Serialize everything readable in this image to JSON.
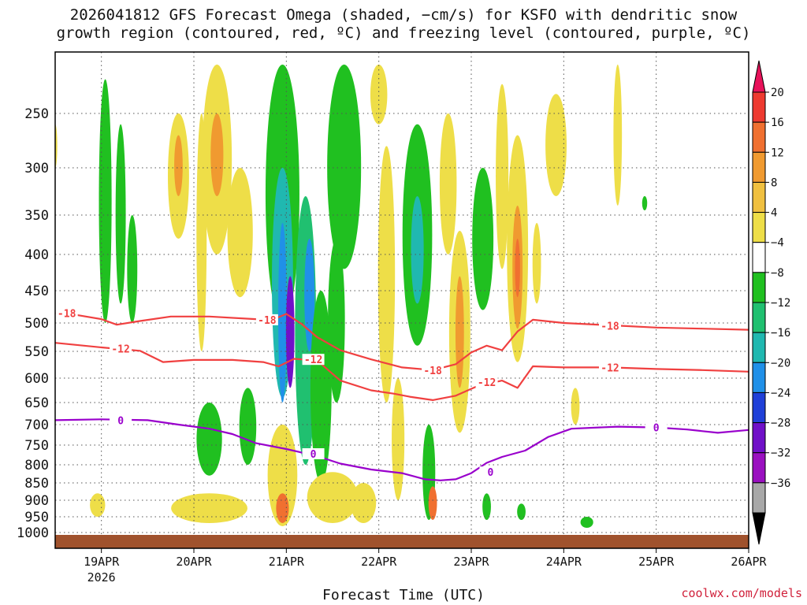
{
  "title_line1": "2026041812 GFS Forecast Omega (shaded, −cm/s) for KSFO with dendritic snow",
  "title_line2": "growth region (contoured, red, ºC) and freezing level (contoured, purple, ºC)",
  "credit": "coolwx.com/models",
  "colors": {
    "isotherm": "#f04040",
    "freezing": "#9900cc",
    "ground": "#a0522d"
  },
  "chart_data": {
    "type": "heatmap",
    "title": "2026041812 GFS Forecast Omega (shaded, −cm/s) for KSFO with dendritic snow growth region (contoured, red, ºC) and freezing level (contoured, purple, ºC)",
    "xlabel": "Forecast Time (UTC)",
    "ylabel": "",
    "x_range_hours": [
      -12,
      168
    ],
    "x_ticks": [
      {
        "label": "19APR",
        "sub": "2026",
        "hour": 0
      },
      {
        "label": "20APR",
        "sub": "",
        "hour": 24
      },
      {
        "label": "21APR",
        "sub": "",
        "hour": 48
      },
      {
        "label": "22APR",
        "sub": "",
        "hour": 72
      },
      {
        "label": "23APR",
        "sub": "",
        "hour": 96
      },
      {
        "label": "24APR",
        "sub": "",
        "hour": 120
      },
      {
        "label": "25APR",
        "sub": "",
        "hour": 144
      },
      {
        "label": "26APR",
        "sub": "",
        "hour": 168
      }
    ],
    "y_ticks_hpa": [
      250,
      300,
      350,
      400,
      450,
      500,
      550,
      600,
      650,
      700,
      750,
      800,
      850,
      900,
      950,
      1000
    ],
    "y_range_hpa": [
      1010,
      200
    ],
    "grid": true,
    "colorbar": {
      "labels": [
        "20",
        "16",
        "12",
        "8",
        "4",
        "−4",
        "−8",
        "−12",
        "−16",
        "−20",
        "−24",
        "−28",
        "−32",
        "−36"
      ],
      "colors": [
        "#e8125a",
        "#ee3a30",
        "#f07030",
        "#f09a30",
        "#f0c040",
        "#eede48",
        "#ffffff",
        "#20c020",
        "#20c070",
        "#20b8b0",
        "#2090e8",
        "#2040d8",
        "#7010c8",
        "#9a10c0",
        "#a8a8a8",
        "#000000"
      ]
    },
    "series": [
      {
        "name": "-18",
        "color": "#f04040",
        "points": [
          [
            -12,
            485
          ],
          [
            -6,
            488
          ],
          [
            0,
            494
          ],
          [
            4,
            503
          ],
          [
            10,
            497
          ],
          [
            18,
            490
          ],
          [
            28,
            490
          ],
          [
            40,
            494
          ],
          [
            44,
            496
          ],
          [
            48,
            486
          ],
          [
            52,
            502
          ],
          [
            56,
            525
          ],
          [
            62,
            548
          ],
          [
            70,
            565
          ],
          [
            78,
            580
          ],
          [
            86,
            585
          ],
          [
            92,
            574
          ],
          [
            96,
            552
          ],
          [
            100,
            540
          ],
          [
            104,
            548
          ],
          [
            108,
            515
          ],
          [
            112,
            495
          ],
          [
            120,
            500
          ],
          [
            132,
            504
          ],
          [
            144,
            508
          ],
          [
            156,
            510
          ],
          [
            168,
            512
          ]
        ]
      },
      {
        "name": "-12",
        "color": "#f04040",
        "points": [
          [
            -12,
            535
          ],
          [
            0,
            543
          ],
          [
            10,
            549
          ],
          [
            16,
            570
          ],
          [
            24,
            566
          ],
          [
            34,
            566
          ],
          [
            42,
            570
          ],
          [
            46,
            578
          ],
          [
            50,
            564
          ],
          [
            56,
            567
          ],
          [
            62,
            605
          ],
          [
            70,
            625
          ],
          [
            76,
            632
          ],
          [
            80,
            638
          ],
          [
            86,
            645
          ],
          [
            92,
            636
          ],
          [
            98,
            615
          ],
          [
            104,
            605
          ],
          [
            108,
            620
          ],
          [
            112,
            578
          ],
          [
            120,
            580
          ],
          [
            132,
            580
          ],
          [
            144,
            583
          ],
          [
            156,
            585
          ],
          [
            168,
            588
          ]
        ]
      },
      {
        "name": "0",
        "color": "#9900cc",
        "points": [
          [
            -12,
            690
          ],
          [
            0,
            688
          ],
          [
            12,
            690
          ],
          [
            20,
            700
          ],
          [
            28,
            710
          ],
          [
            34,
            723
          ],
          [
            40,
            745
          ],
          [
            48,
            760
          ],
          [
            56,
            778
          ],
          [
            62,
            797
          ],
          [
            70,
            813
          ],
          [
            78,
            823
          ],
          [
            84,
            840
          ],
          [
            88,
            843
          ],
          [
            92,
            840
          ],
          [
            96,
            823
          ],
          [
            100,
            795
          ],
          [
            104,
            780
          ],
          [
            110,
            764
          ],
          [
            116,
            730
          ],
          [
            122,
            710
          ],
          [
            134,
            705
          ],
          [
            144,
            707
          ],
          [
            152,
            712
          ],
          [
            160,
            720
          ],
          [
            168,
            713
          ]
        ]
      }
    ],
    "contour_labels": [
      {
        "text": "-18",
        "hour": -9,
        "hpa": 485,
        "series": "-18"
      },
      {
        "text": "-18",
        "hour": 43,
        "hpa": 495,
        "series": "-18"
      },
      {
        "text": "-18",
        "hour": 86,
        "hpa": 585,
        "series": "-18"
      },
      {
        "text": "-18",
        "hour": 132,
        "hpa": 505,
        "series": "-18"
      },
      {
        "text": "-12",
        "hour": 5,
        "hpa": 545,
        "series": "-12"
      },
      {
        "text": "-12",
        "hour": 55,
        "hpa": 565,
        "series": "-12"
      },
      {
        "text": "-12",
        "hour": 100,
        "hpa": 608,
        "series": "-12"
      },
      {
        "text": "-12",
        "hour": 132,
        "hpa": 580,
        "series": "-12"
      },
      {
        "text": "0",
        "hour": 5,
        "hpa": 690,
        "series": "0"
      },
      {
        "text": "0",
        "hour": 55,
        "hpa": 772,
        "series": "0"
      },
      {
        "text": "0",
        "hour": 101,
        "hpa": 820,
        "series": "0"
      },
      {
        "text": "0",
        "hour": 144,
        "hpa": 707,
        "series": "0"
      }
    ],
    "omega_regions": [
      {
        "hour": 1,
        "hpa_top": 215,
        "hpa_bot": 500,
        "w": 1.5,
        "value": -6
      },
      {
        "hour": 5,
        "hpa_top": 260,
        "hpa_bot": 470,
        "w": 1.2,
        "value": -6
      },
      {
        "hour": 8,
        "hpa_top": 350,
        "hpa_bot": 500,
        "w": 1.2,
        "value": -5
      },
      {
        "hour": -12,
        "hpa_top": 260,
        "hpa_bot": 300,
        "w": 0.5,
        "value": 5
      },
      {
        "hour": -1,
        "hpa_top": 880,
        "hpa_bot": 950,
        "w": 1.8,
        "value": 5
      },
      {
        "hour": 20,
        "hpa_top": 250,
        "hpa_bot": 380,
        "w": 2.5,
        "value": 6
      },
      {
        "hour": 20,
        "hpa_top": 270,
        "hpa_bot": 330,
        "w": 1.0,
        "value": 10
      },
      {
        "hour": 26,
        "hpa_top": 250,
        "hpa_bot": 550,
        "w": 1.2,
        "value": 6
      },
      {
        "hour": 30,
        "hpa_top": 200,
        "hpa_bot": 400,
        "w": 3.5,
        "value": 6
      },
      {
        "hour": 30,
        "hpa_top": 250,
        "hpa_bot": 330,
        "w": 1.5,
        "value": 10
      },
      {
        "hour": 36,
        "hpa_top": 300,
        "hpa_bot": 460,
        "w": 3.0,
        "value": 6
      },
      {
        "hour": 28,
        "hpa_top": 650,
        "hpa_bot": 830,
        "w": 3.0,
        "value": -6
      },
      {
        "hour": 38,
        "hpa_top": 620,
        "hpa_bot": 800,
        "w": 2.0,
        "value": -6
      },
      {
        "hour": 28,
        "hpa_top": 880,
        "hpa_bot": 970,
        "w": 9.0,
        "value": 6
      },
      {
        "hour": 24,
        "hpa_top": 900,
        "hpa_bot": 960,
        "w": 3.0,
        "value": 6
      },
      {
        "hour": 47,
        "hpa_top": 200,
        "hpa_bot": 500,
        "w": 4.0,
        "value": -7
      },
      {
        "hour": 47,
        "hpa_top": 300,
        "hpa_bot": 640,
        "w": 2.5,
        "value": -12
      },
      {
        "hour": 47,
        "hpa_top": 360,
        "hpa_bot": 650,
        "w": 1.0,
        "value": -18
      },
      {
        "hour": 49,
        "hpa_top": 430,
        "hpa_bot": 620,
        "w": 1.0,
        "value": -25
      },
      {
        "hour": 53,
        "hpa_top": 330,
        "hpa_bot": 800,
        "w": 2.5,
        "value": -8
      },
      {
        "hour": 54,
        "hpa_top": 380,
        "hpa_bot": 550,
        "w": 1.2,
        "value": -16
      },
      {
        "hour": 57,
        "hpa_top": 450,
        "hpa_bot": 850,
        "w": 2.5,
        "value": -7
      },
      {
        "hour": 61,
        "hpa_top": 380,
        "hpa_bot": 650,
        "w": 2.0,
        "value": -6
      },
      {
        "hour": 63,
        "hpa_top": 200,
        "hpa_bot": 420,
        "w": 4.0,
        "value": -6
      },
      {
        "hour": 47,
        "hpa_top": 700,
        "hpa_bot": 980,
        "w": 3.5,
        "value": 6
      },
      {
        "hour": 47,
        "hpa_top": 880,
        "hpa_bot": 970,
        "w": 1.5,
        "value": 14
      },
      {
        "hour": 60,
        "hpa_top": 820,
        "hpa_bot": 970,
        "w": 6.0,
        "value": 6
      },
      {
        "hour": 68,
        "hpa_top": 850,
        "hpa_bot": 970,
        "w": 3.0,
        "value": 6
      },
      {
        "hour": 72,
        "hpa_top": 200,
        "hpa_bot": 260,
        "w": 2.0,
        "value": 6
      },
      {
        "hour": 74,
        "hpa_top": 280,
        "hpa_bot": 650,
        "w": 2.0,
        "value": 5
      },
      {
        "hour": 82,
        "hpa_top": 260,
        "hpa_bot": 540,
        "w": 3.5,
        "value": -7
      },
      {
        "hour": 82,
        "hpa_top": 330,
        "hpa_bot": 470,
        "w": 1.5,
        "value": -12
      },
      {
        "hour": 77,
        "hpa_top": 600,
        "hpa_bot": 900,
        "w": 1.5,
        "value": 5
      },
      {
        "hour": 85,
        "hpa_top": 700,
        "hpa_bot": 960,
        "w": 1.5,
        "value": -6
      },
      {
        "hour": 86,
        "hpa_top": 860,
        "hpa_bot": 960,
        "w": 1.0,
        "value": 14
      },
      {
        "hour": 90,
        "hpa_top": 250,
        "hpa_bot": 400,
        "w": 2.0,
        "value": 6
      },
      {
        "hour": 93,
        "hpa_top": 370,
        "hpa_bot": 720,
        "w": 2.5,
        "value": 6
      },
      {
        "hour": 93,
        "hpa_top": 430,
        "hpa_bot": 620,
        "w": 1.0,
        "value": 10
      },
      {
        "hour": 99,
        "hpa_top": 300,
        "hpa_bot": 480,
        "w": 2.5,
        "value": -7
      },
      {
        "hour": 104,
        "hpa_top": 220,
        "hpa_bot": 420,
        "w": 1.5,
        "value": 6
      },
      {
        "hour": 108,
        "hpa_top": 270,
        "hpa_bot": 570,
        "w": 2.5,
        "value": 6
      },
      {
        "hour": 108,
        "hpa_top": 340,
        "hpa_bot": 510,
        "w": 1.2,
        "value": 11
      },
      {
        "hour": 108,
        "hpa_top": 380,
        "hpa_bot": 460,
        "w": 0.6,
        "value": 15
      },
      {
        "hour": 113,
        "hpa_top": 360,
        "hpa_bot": 470,
        "w": 1.0,
        "value": 6
      },
      {
        "hour": 118,
        "hpa_top": 230,
        "hpa_bot": 330,
        "w": 2.5,
        "value": 6
      },
      {
        "hour": 123,
        "hpa_top": 620,
        "hpa_bot": 700,
        "w": 1.0,
        "value": 5
      },
      {
        "hour": 100,
        "hpa_top": 880,
        "hpa_bot": 960,
        "w": 1.0,
        "value": -6
      },
      {
        "hour": 109,
        "hpa_top": 910,
        "hpa_bot": 960,
        "w": 1.0,
        "value": -6
      },
      {
        "hour": 126,
        "hpa_top": 950,
        "hpa_bot": 985,
        "w": 1.5,
        "value": -6
      },
      {
        "hour": 134,
        "hpa_top": 200,
        "hpa_bot": 340,
        "w": 1.0,
        "value": 6
      },
      {
        "hour": 141,
        "hpa_top": 330,
        "hpa_bot": 345,
        "w": 0.6,
        "value": -6
      }
    ]
  }
}
